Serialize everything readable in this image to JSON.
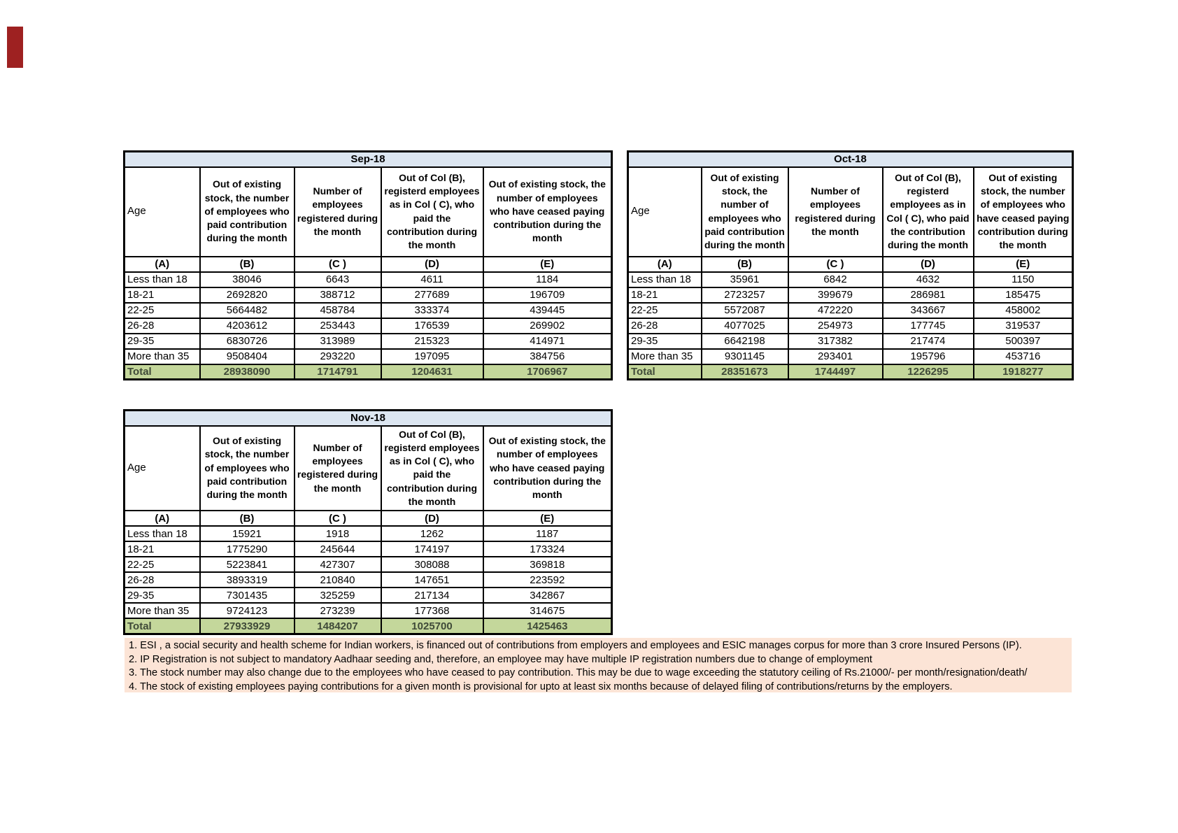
{
  "colors": {
    "month_band": "#DCE6F1",
    "total_bg": "#C4D79B",
    "total_text": "#3F4A38",
    "notes_bg": "#FCE4D6",
    "border": "#000000",
    "red_mark": "#9E2121"
  },
  "tables": [
    {
      "title": "Sep-18",
      "col_headers": [
        "Age",
        "Out of existing stock, the number of employees who paid contribution during the month",
        "Number of employees registered during the month",
        "Out of Col (B), registerd employees as in Col ( C), who paid the contribution during the month",
        "Out of existing stock, the number of  employees  who have ceased paying contribution during the month"
      ],
      "col_letters": [
        "(A)",
        "(B)",
        "(C )",
        "(D)",
        "(E)"
      ],
      "rows": [
        [
          "Less than 18",
          "38046",
          "6643",
          "4611",
          "1184"
        ],
        [
          "18-21",
          "2692820",
          "388712",
          "277689",
          "196709"
        ],
        [
          "22-25",
          "5664482",
          "458784",
          "333374",
          "439445"
        ],
        [
          "26-28",
          "4203612",
          "253443",
          "176539",
          "269902"
        ],
        [
          "29-35",
          "6830726",
          "313989",
          "215323",
          "414971"
        ],
        [
          "More than 35",
          "9508404",
          "293220",
          "197095",
          "384756"
        ]
      ],
      "total": [
        "Total",
        "28938090",
        "1714791",
        "1204631",
        "1706967"
      ]
    },
    {
      "title": "Oct-18",
      "col_headers": [
        "Age",
        "Out of existing stock, the number of employees who paid contribution during the month",
        "Number of employees registered during the month",
        "Out of Col (B), registerd employees as in Col ( C), who paid the contribution during the month",
        "Out of existing stock, the number of  employees  who have ceased paying contribution during the month"
      ],
      "col_letters": [
        "(A)",
        "(B)",
        "(C )",
        "(D)",
        "(E)"
      ],
      "rows": [
        [
          "Less than 18",
          "35961",
          "6842",
          "4632",
          "1150"
        ],
        [
          "18-21",
          "2723257",
          "399679",
          "286981",
          "185475"
        ],
        [
          "22-25",
          "5572087",
          "472220",
          "343667",
          "458002"
        ],
        [
          "26-28",
          "4077025",
          "254973",
          "177745",
          "319537"
        ],
        [
          "29-35",
          "6642198",
          "317382",
          "217474",
          "500397"
        ],
        [
          "More than 35",
          "9301145",
          "293401",
          "195796",
          "453716"
        ]
      ],
      "total": [
        "Total",
        "28351673",
        "1744497",
        "1226295",
        "1918277"
      ]
    },
    {
      "title": "Nov-18",
      "col_headers": [
        "Age",
        "Out of existing stock, the number of employees who paid contribution during the month",
        "Number of employees registered during the month",
        "Out of Col (B), registerd employees as in Col ( C), who paid the contribution during the month",
        "Out of existing stock, the number of  employees  who have ceased paying contribution during the month"
      ],
      "col_letters": [
        "(A)",
        "(B)",
        "(C )",
        "(D)",
        "(E)"
      ],
      "rows": [
        [
          "Less than 18",
          "15921",
          "1918",
          "1262",
          "1187"
        ],
        [
          "18-21",
          "1775290",
          "245644",
          "174197",
          "173324"
        ],
        [
          "22-25",
          "5223841",
          "427307",
          "308088",
          "369818"
        ],
        [
          "26-28",
          "3893319",
          "210840",
          "147651",
          "223592"
        ],
        [
          "29-35",
          "7301435",
          "325259",
          "217134",
          "342867"
        ],
        [
          "More than 35",
          "9724123",
          "273239",
          "177368",
          "314675"
        ]
      ],
      "total": [
        "Total",
        "27933929",
        "1484207",
        "1025700",
        "1425463"
      ]
    }
  ],
  "notes": [
    "1. ESI , a social security and health scheme for Indian workers, is financed out of contributions from employers and employees and ESIC manages corpus for more than 3 crore Insured Persons (IP).",
    "2. IP Registration is not subject to mandatory Aadhaar seeding and, therefore, an employee may have multiple IP registration numbers due to change of employment",
    "3. The stock number may also change due to the employees who have ceased to pay contribution. This may  be due to wage exceeding the statutory ceiling of  Rs.21000/- per month/resignation/death/",
    "4. The stock of existing employees paying contributions for a given month is provisional for upto at least six months because of delayed filing of contributions/returns by the employers."
  ]
}
